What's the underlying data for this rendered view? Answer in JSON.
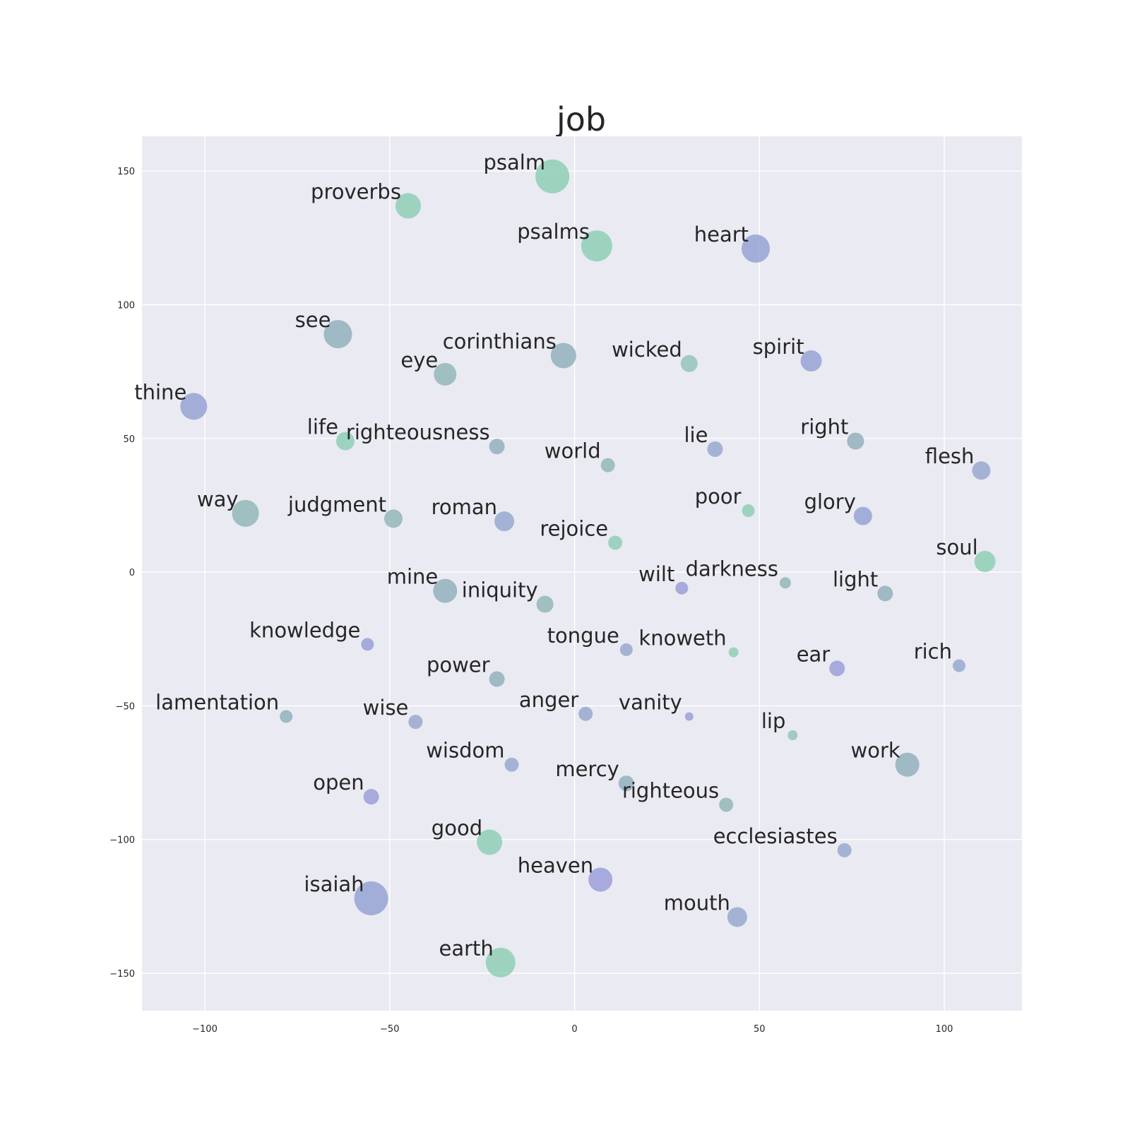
{
  "chart_data": {
    "type": "scatter",
    "title": "job",
    "xlabel": "",
    "ylabel": "",
    "xlim": [
      -117,
      121
    ],
    "ylim": [
      -164,
      163
    ],
    "x_ticks": [
      -100,
      -50,
      0,
      50,
      100
    ],
    "y_ticks": [
      150,
      100,
      50,
      0,
      -50,
      -100,
      -150
    ],
    "x_tick_labels": [
      "−100",
      "−50",
      "0",
      "50",
      "100"
    ],
    "y_tick_labels": [
      "150",
      "100",
      "50",
      "0",
      "−50",
      "−100",
      "−150"
    ],
    "grid": true,
    "background": "#eaeaf2",
    "points": [
      {
        "label": "psalm",
        "x": -6,
        "y": 148,
        "r": 24,
        "color": "#8fcfb5"
      },
      {
        "label": "proverbs",
        "x": -45,
        "y": 137,
        "r": 18,
        "color": "#8fcfb5"
      },
      {
        "label": "psalms",
        "x": 6,
        "y": 122,
        "r": 22,
        "color": "#8fcfb5"
      },
      {
        "label": "heart",
        "x": 49,
        "y": 121,
        "r": 20,
        "color": "#96a3d4"
      },
      {
        "label": "see",
        "x": -64,
        "y": 89,
        "r": 20,
        "color": "#92b0bd"
      },
      {
        "label": "corinthians",
        "x": -3,
        "y": 81,
        "r": 18,
        "color": "#92b0bd"
      },
      {
        "label": "wicked",
        "x": 31,
        "y": 78,
        "r": 12,
        "color": "#94c4ba"
      },
      {
        "label": "spirit",
        "x": 64,
        "y": 79,
        "r": 15,
        "color": "#96a3d4"
      },
      {
        "label": "eye",
        "x": -35,
        "y": 74,
        "r": 16,
        "color": "#92b7b8"
      },
      {
        "label": "thine",
        "x": -103,
        "y": 62,
        "r": 19,
        "color": "#96a3d4"
      },
      {
        "label": "life",
        "x": -62,
        "y": 49,
        "r": 13,
        "color": "#8fcfb5"
      },
      {
        "label": "righteousness",
        "x": -21,
        "y": 47,
        "r": 11,
        "color": "#92b0bd"
      },
      {
        "label": "world",
        "x": 9,
        "y": 40,
        "r": 10,
        "color": "#92b7b8"
      },
      {
        "label": "lie",
        "x": 38,
        "y": 46,
        "r": 11,
        "color": "#98a9ce"
      },
      {
        "label": "right",
        "x": 76,
        "y": 49,
        "r": 12,
        "color": "#92b0bd"
      },
      {
        "label": "flesh",
        "x": 110,
        "y": 38,
        "r": 13,
        "color": "#98a9ce"
      },
      {
        "label": "way",
        "x": -89,
        "y": 22,
        "r": 19,
        "color": "#92b7b8"
      },
      {
        "label": "judgment",
        "x": -49,
        "y": 20,
        "r": 13,
        "color": "#92b7b8"
      },
      {
        "label": "roman",
        "x": -19,
        "y": 19,
        "r": 14,
        "color": "#98a9ce"
      },
      {
        "label": "poor",
        "x": 47,
        "y": 23,
        "r": 9,
        "color": "#8fcfb5"
      },
      {
        "label": "glory",
        "x": 78,
        "y": 21,
        "r": 13,
        "color": "#96a3d4"
      },
      {
        "label": "rejoice",
        "x": 11,
        "y": 11,
        "r": 10,
        "color": "#8fcfb5"
      },
      {
        "label": "soul",
        "x": 111,
        "y": 4,
        "r": 15,
        "color": "#8fcfb5"
      },
      {
        "label": "mine",
        "x": -35,
        "y": -7,
        "r": 17,
        "color": "#92b0bd"
      },
      {
        "label": "iniquity",
        "x": -8,
        "y": -12,
        "r": 12,
        "color": "#92b7b8"
      },
      {
        "label": "wilt",
        "x": 29,
        "y": -6,
        "r": 9,
        "color": "#9a9fd8"
      },
      {
        "label": "darkness",
        "x": 57,
        "y": -4,
        "r": 8,
        "color": "#92b7b8"
      },
      {
        "label": "light",
        "x": 84,
        "y": -8,
        "r": 11,
        "color": "#92b0bd"
      },
      {
        "label": "knowledge",
        "x": -56,
        "y": -27,
        "r": 9,
        "color": "#9a9fd8"
      },
      {
        "label": "tongue",
        "x": 14,
        "y": -29,
        "r": 9,
        "color": "#98a9ce"
      },
      {
        "label": "knoweth",
        "x": 43,
        "y": -30,
        "r": 7,
        "color": "#8fcfb5"
      },
      {
        "label": "ear",
        "x": 71,
        "y": -36,
        "r": 11,
        "color": "#9a9fd8"
      },
      {
        "label": "rich",
        "x": 104,
        "y": -35,
        "r": 9,
        "color": "#98a9ce"
      },
      {
        "label": "power",
        "x": -21,
        "y": -40,
        "r": 11,
        "color": "#92b0bd"
      },
      {
        "label": "lamentation",
        "x": -78,
        "y": -54,
        "r": 9,
        "color": "#92b0bd"
      },
      {
        "label": "wise",
        "x": -43,
        "y": -56,
        "r": 10,
        "color": "#98a9ce"
      },
      {
        "label": "anger",
        "x": 3,
        "y": -53,
        "r": 10,
        "color": "#98a9ce"
      },
      {
        "label": "vanity",
        "x": 31,
        "y": -54,
        "r": 6,
        "color": "#9a9fd8"
      },
      {
        "label": "lip",
        "x": 59,
        "y": -61,
        "r": 7,
        "color": "#94c4ba"
      },
      {
        "label": "wisdom",
        "x": -17,
        "y": -72,
        "r": 10,
        "color": "#98a9ce"
      },
      {
        "label": "work",
        "x": 90,
        "y": -72,
        "r": 17,
        "color": "#92b0bd"
      },
      {
        "label": "mercy",
        "x": 14,
        "y": -79,
        "r": 11,
        "color": "#92b0bd"
      },
      {
        "label": "open",
        "x": -55,
        "y": -84,
        "r": 11,
        "color": "#9a9fd8"
      },
      {
        "label": "righteous",
        "x": 41,
        "y": -87,
        "r": 10,
        "color": "#92b7b8"
      },
      {
        "label": "good",
        "x": -23,
        "y": -101,
        "r": 18,
        "color": "#8fcfb5"
      },
      {
        "label": "ecclesiastes",
        "x": 73,
        "y": -104,
        "r": 10,
        "color": "#98a9ce"
      },
      {
        "label": "heaven",
        "x": 7,
        "y": -115,
        "r": 17,
        "color": "#9a9fd8"
      },
      {
        "label": "isaiah",
        "x": -55,
        "y": -122,
        "r": 24,
        "color": "#96a3d4"
      },
      {
        "label": "mouth",
        "x": 44,
        "y": -129,
        "r": 14,
        "color": "#98a9ce"
      },
      {
        "label": "earth",
        "x": -20,
        "y": -146,
        "r": 21,
        "color": "#8fcfb5"
      }
    ]
  }
}
